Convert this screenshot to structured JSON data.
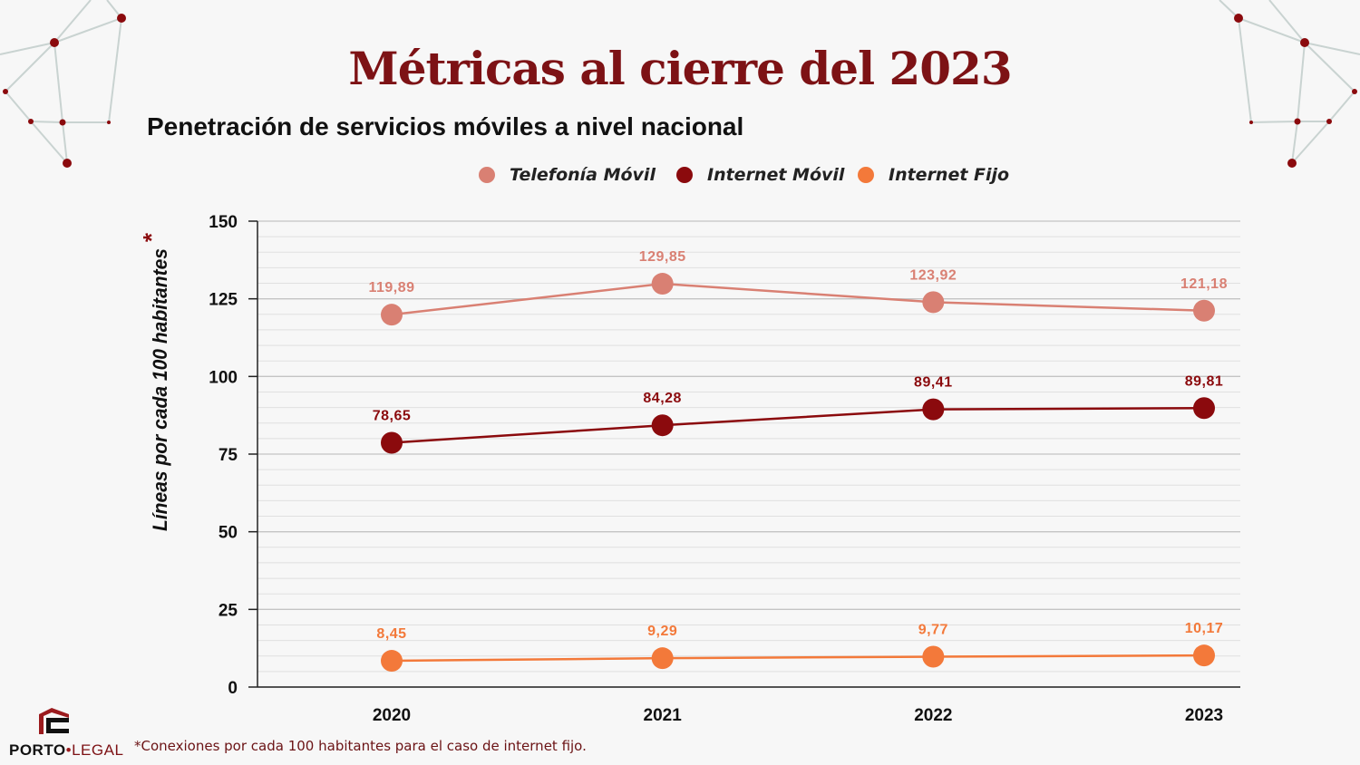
{
  "title": "Métricas al cierre del 2023",
  "subtitle": "Penetración de servicios móviles a nivel nacional",
  "footnote": "*Conexiones por cada 100 habitantes para el caso de internet fijo.",
  "logo": {
    "brand": "PORTO",
    "suffix": "LEGAL",
    "icon": "porto-legal-logo-icon"
  },
  "colors": {
    "title": "#7d1215",
    "telefonia": "#d98073",
    "internet_movil": "#8b0a0d",
    "internet_fijo": "#f3793a"
  },
  "chart_data": {
    "type": "line",
    "title": "Penetración de servicios móviles a nivel nacional",
    "ylabel": "Líneas por cada 100 habitantes",
    "ylabel_marker": "*",
    "xlabel": "",
    "categories": [
      "2020",
      "2021",
      "2022",
      "2023"
    ],
    "ylim": [
      0,
      150
    ],
    "yticks": [
      0,
      25,
      50,
      75,
      100,
      125,
      150
    ],
    "grid": true,
    "legend_position": "top-center",
    "series": [
      {
        "name": "Telefonía Móvil",
        "color": "#d98073",
        "values": [
          119.89,
          129.85,
          123.92,
          121.18
        ],
        "labels": [
          "119,89",
          "129,85",
          "123,92",
          "121,18"
        ]
      },
      {
        "name": "Internet Móvil",
        "color": "#8b0a0d",
        "values": [
          78.65,
          84.28,
          89.41,
          89.81
        ],
        "labels": [
          "78,65",
          "84,28",
          "89,41",
          "89,81"
        ]
      },
      {
        "name": "Internet Fijo",
        "color": "#f3793a",
        "values": [
          8.45,
          9.29,
          9.77,
          10.17
        ],
        "labels": [
          "8,45",
          "9,29",
          "9,77",
          "10,17"
        ]
      }
    ]
  }
}
